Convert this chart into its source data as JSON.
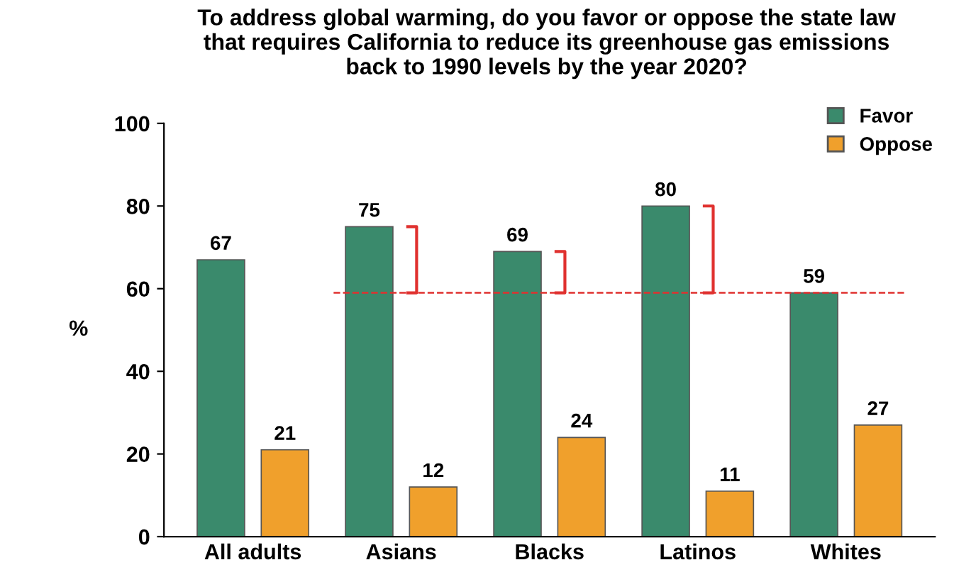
{
  "chart_data": {
    "type": "bar",
    "title": "To address global warming, do you favor or oppose the state law\nthat requires California to reduce its greenhouse gas emissions\nback to 1990 levels by the year 2020?",
    "ylabel": "%",
    "categories": [
      "All adults",
      "Asians",
      "Blacks",
      "Latinos",
      "Whites"
    ],
    "series": [
      {
        "name": "Favor",
        "color": "#3a8a6c",
        "values": [
          67,
          75,
          69,
          80,
          59
        ]
      },
      {
        "name": "Oppose",
        "color": "#f0a02c",
        "values": [
          21,
          12,
          24,
          11,
          27
        ]
      }
    ],
    "ylim": [
      0,
      100
    ],
    "yticks": [
      0,
      20,
      40,
      60,
      80,
      100
    ],
    "grid": false,
    "legend": "top right",
    "data_labels": true,
    "ref_lines": [
      {
        "axis": "y",
        "value": 59,
        "color": "#e0312f",
        "line_style": "dashed"
      }
    ]
  }
}
